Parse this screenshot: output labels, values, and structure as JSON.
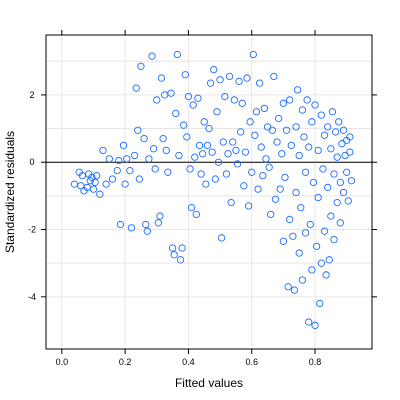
{
  "chart_data": {
    "type": "scatter",
    "title": "",
    "xlabel": "Fitted values",
    "ylabel": "Standardized residuals",
    "xlim": [
      -0.05,
      0.98
    ],
    "ylim": [
      -5.55,
      3.78
    ],
    "x_ticks": [
      0.0,
      0.2,
      0.4,
      0.6,
      0.8
    ],
    "x_tick_labels": [
      "0.0",
      "0.2",
      "0.4",
      "0.6",
      "0.8"
    ],
    "y_ticks": [
      -4,
      -2,
      0,
      2
    ],
    "y_tick_labels": [
      "-4",
      "-2",
      "0",
      "2"
    ],
    "grid": true,
    "grid_color": "#e6e6e6",
    "reference_line": 0,
    "marker": "open-circle",
    "point_color": "#1a6cff",
    "series": [
      {
        "points": [
          [
            0.04,
            -0.65
          ],
          [
            0.055,
            -0.3
          ],
          [
            0.06,
            -0.7
          ],
          [
            0.065,
            -0.4
          ],
          [
            0.07,
            -0.85
          ],
          [
            0.08,
            -0.75
          ],
          [
            0.085,
            -0.35
          ],
          [
            0.09,
            -0.55
          ],
          [
            0.095,
            -0.45
          ],
          [
            0.1,
            -0.8
          ],
          [
            0.105,
            -0.6
          ],
          [
            0.11,
            -0.4
          ],
          [
            0.12,
            -0.95
          ],
          [
            0.13,
            0.35
          ],
          [
            0.14,
            -0.65
          ],
          [
            0.15,
            0.1
          ],
          [
            0.16,
            -0.5
          ],
          [
            0.175,
            -0.25
          ],
          [
            0.18,
            0.05
          ],
          [
            0.185,
            -1.85
          ],
          [
            0.195,
            0.5
          ],
          [
            0.2,
            -0.65
          ],
          [
            0.205,
            0.1
          ],
          [
            0.215,
            -0.25
          ],
          [
            0.22,
            -1.95
          ],
          [
            0.23,
            0.2
          ],
          [
            0.235,
            2.2
          ],
          [
            0.24,
            0.95
          ],
          [
            0.245,
            -0.5
          ],
          [
            0.25,
            2.85
          ],
          [
            0.26,
            0.7
          ],
          [
            0.265,
            -1.85
          ],
          [
            0.27,
            -2.05
          ],
          [
            0.275,
            0.1
          ],
          [
            0.285,
            3.15
          ],
          [
            0.29,
            0.4
          ],
          [
            0.295,
            -0.2
          ],
          [
            0.3,
            1.85
          ],
          [
            0.305,
            -1.8
          ],
          [
            0.31,
            -1.6
          ],
          [
            0.315,
            2.5
          ],
          [
            0.32,
            0.7
          ],
          [
            0.325,
            2.0
          ],
          [
            0.33,
            0.35
          ],
          [
            0.335,
            -0.3
          ],
          [
            0.345,
            2.05
          ],
          [
            0.35,
            -2.55
          ],
          [
            0.355,
            -2.75
          ],
          [
            0.36,
            1.45
          ],
          [
            0.365,
            3.2
          ],
          [
            0.37,
            0.2
          ],
          [
            0.375,
            -2.9
          ],
          [
            0.38,
            -2.55
          ],
          [
            0.385,
            1.1
          ],
          [
            0.39,
            2.6
          ],
          [
            0.395,
            0.75
          ],
          [
            0.4,
            1.95
          ],
          [
            0.405,
            -0.2
          ],
          [
            0.41,
            -1.35
          ],
          [
            0.415,
            1.7
          ],
          [
            0.42,
            0.15
          ],
          [
            0.425,
            -1.55
          ],
          [
            0.43,
            1.9
          ],
          [
            0.435,
            0.5
          ],
          [
            0.44,
            -0.35
          ],
          [
            0.445,
            0.25
          ],
          [
            0.45,
            1.2
          ],
          [
            0.455,
            -0.65
          ],
          [
            0.46,
            0.5
          ],
          [
            0.465,
            1.0
          ],
          [
            0.47,
            2.35
          ],
          [
            0.475,
            0.3
          ],
          [
            0.48,
            2.75
          ],
          [
            0.485,
            -0.5
          ],
          [
            0.49,
            1.5
          ],
          [
            0.495,
            0.0
          ],
          [
            0.5,
            2.45
          ],
          [
            0.505,
            -2.25
          ],
          [
            0.51,
            0.6
          ],
          [
            0.515,
            1.95
          ],
          [
            0.52,
            -0.35
          ],
          [
            0.525,
            0.25
          ],
          [
            0.53,
            2.55
          ],
          [
            0.535,
            -1.2
          ],
          [
            0.54,
            0.6
          ],
          [
            0.545,
            1.85
          ],
          [
            0.55,
            0.35
          ],
          [
            0.555,
            -0.05
          ],
          [
            0.56,
            2.4
          ],
          [
            0.565,
            0.9
          ],
          [
            0.57,
            1.75
          ],
          [
            0.575,
            -0.7
          ],
          [
            0.58,
            0.3
          ],
          [
            0.585,
            2.5
          ],
          [
            0.59,
            -1.3
          ],
          [
            0.595,
            1.2
          ],
          [
            0.6,
            -0.3
          ],
          [
            0.605,
            3.2
          ],
          [
            0.61,
            0.8
          ],
          [
            0.615,
            1.5
          ],
          [
            0.62,
            -0.8
          ],
          [
            0.625,
            2.35
          ],
          [
            0.63,
            0.45
          ],
          [
            0.635,
            -0.4
          ],
          [
            0.64,
            1.6
          ],
          [
            0.645,
            0.1
          ],
          [
            0.65,
            1.05
          ],
          [
            0.655,
            -0.15
          ],
          [
            0.66,
            -1.55
          ],
          [
            0.665,
            0.95
          ],
          [
            0.67,
            2.55
          ],
          [
            0.675,
            -1.1
          ],
          [
            0.68,
            0.6
          ],
          [
            0.685,
            1.3
          ],
          [
            0.69,
            -0.8
          ],
          [
            0.695,
            0.25
          ],
          [
            0.7,
            -2.35
          ],
          [
            0.7,
            1.75
          ],
          [
            0.705,
            -0.45
          ],
          [
            0.71,
            0.95
          ],
          [
            0.715,
            -3.7
          ],
          [
            0.72,
            1.85
          ],
          [
            0.72,
            -1.7
          ],
          [
            0.725,
            0.5
          ],
          [
            0.73,
            -2.2
          ],
          [
            0.735,
            -3.8
          ],
          [
            0.74,
            1.05
          ],
          [
            0.74,
            -0.9
          ],
          [
            0.745,
            2.15
          ],
          [
            0.75,
            -2.7
          ],
          [
            0.75,
            0.2
          ],
          [
            0.755,
            -1.35
          ],
          [
            0.76,
            1.55
          ],
          [
            0.76,
            -3.5
          ],
          [
            0.765,
            0.75
          ],
          [
            0.77,
            -2.1
          ],
          [
            0.77,
            -0.3
          ],
          [
            0.775,
            1.85
          ],
          [
            0.78,
            -4.75
          ],
          [
            0.78,
            0.45
          ],
          [
            0.785,
            -1.85
          ],
          [
            0.79,
            1.2
          ],
          [
            0.79,
            -3.2
          ],
          [
            0.795,
            -0.6
          ],
          [
            0.8,
            -4.85
          ],
          [
            0.8,
            1.7
          ],
          [
            0.805,
            -2.5
          ],
          [
            0.81,
            0.35
          ],
          [
            0.81,
            -1.05
          ],
          [
            0.815,
            -4.2
          ],
          [
            0.82,
            1.4
          ],
          [
            0.82,
            -3.0
          ],
          [
            0.825,
            -0.2
          ],
          [
            0.83,
            0.8
          ],
          [
            0.83,
            -2.05
          ],
          [
            0.835,
            -3.35
          ],
          [
            0.84,
            1.05
          ],
          [
            0.84,
            -0.75
          ],
          [
            0.845,
            -2.9
          ],
          [
            0.85,
            0.4
          ],
          [
            0.85,
            -1.6
          ],
          [
            0.855,
            1.5
          ],
          [
            0.86,
            -0.35
          ],
          [
            0.86,
            -2.3
          ],
          [
            0.865,
            0.9
          ],
          [
            0.87,
            -1.2
          ],
          [
            0.87,
            0.15
          ],
          [
            0.875,
            1.2
          ],
          [
            0.88,
            -0.6
          ],
          [
            0.88,
            -1.8
          ],
          [
            0.885,
            0.55
          ],
          [
            0.89,
            0.95
          ],
          [
            0.89,
            -0.9
          ],
          [
            0.895,
            0.2
          ],
          [
            0.9,
            -0.3
          ],
          [
            0.9,
            0.65
          ],
          [
            0.905,
            -1.15
          ],
          [
            0.91,
            0.3
          ],
          [
            0.91,
            0.75
          ],
          [
            0.915,
            -0.55
          ]
        ]
      }
    ]
  }
}
